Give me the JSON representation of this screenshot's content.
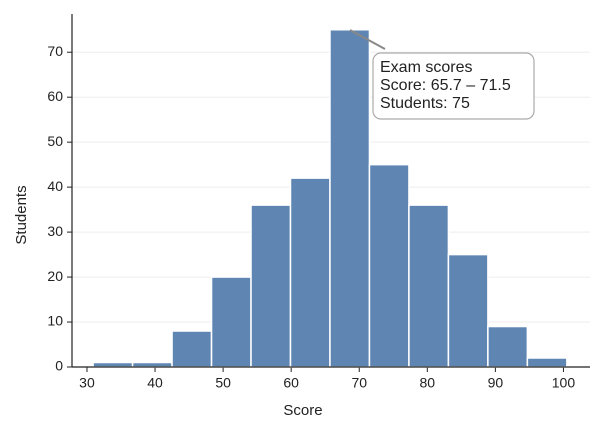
{
  "chart_data": {
    "type": "histogram",
    "x_label": "Score",
    "y_label": "Students",
    "bins": [
      30.9,
      36.7,
      42.5,
      48.3,
      54.1,
      59.9,
      65.7,
      71.5,
      77.3,
      83.1,
      88.9,
      94.7,
      100.5
    ],
    "values": [
      1,
      1,
      8,
      20,
      36,
      42,
      75,
      45,
      36,
      25,
      9,
      2
    ],
    "color": "#5f86b3",
    "xlim": [
      27.8,
      103.9
    ],
    "xticks": [
      30,
      40,
      50,
      60,
      70,
      80,
      90,
      100
    ],
    "ylim": [
      0,
      78.5
    ],
    "yticks": [
      0,
      10,
      20,
      30,
      40,
      50,
      60,
      70
    ],
    "grid": true,
    "annotation": {
      "title": "Exam scores",
      "lines": [
        "Score: 65.7 – 71.5",
        "Students: 75"
      ]
    }
  }
}
